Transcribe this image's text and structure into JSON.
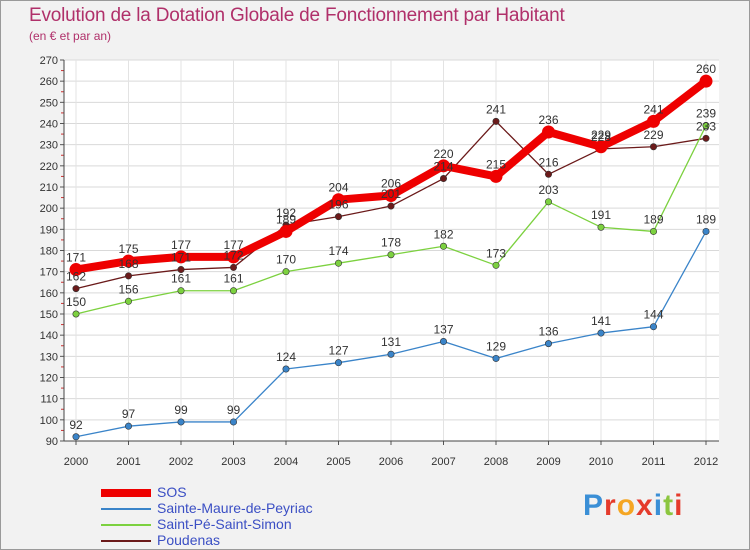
{
  "header": {
    "title": "Evolution de la Dotation Globale de Fonctionnement par Habitant",
    "subtitle": "(en € et par an)"
  },
  "logo": {
    "letters": [
      "P",
      "r",
      "o",
      "x",
      "i",
      "t",
      "i"
    ],
    "colors": [
      "#3b8fd6",
      "#e53b2c",
      "#f5a623",
      "#e53b2c",
      "#3b8fd6",
      "#8cc63f",
      "#e53b2c"
    ]
  },
  "chart_data": {
    "type": "line",
    "title": "Evolution de la Dotation Globale de Fonctionnement par Habitant",
    "subtitle": "(en € et par an)",
    "categories": [
      "2000",
      "2001",
      "2002",
      "2003",
      "2004",
      "2005",
      "2006",
      "2007",
      "2008",
      "2009",
      "2010",
      "2011",
      "2012"
    ],
    "ylim": [
      90,
      270
    ],
    "yticks": [
      90,
      100,
      110,
      120,
      130,
      140,
      150,
      160,
      170,
      180,
      190,
      200,
      210,
      220,
      230,
      240,
      250,
      260,
      270
    ],
    "grid": true,
    "legend_position": "bottom-left",
    "series": [
      {
        "name": "SOS",
        "color": "#ee0000",
        "values": [
          171,
          175,
          177,
          177,
          189,
          204,
          206,
          220,
          215,
          236,
          229,
          241,
          260
        ]
      },
      {
        "name": "Sainte-Maure-de-Peyriac",
        "color": "#3a84c9",
        "values": [
          92,
          97,
          99,
          99,
          124,
          127,
          131,
          137,
          129,
          136,
          141,
          144,
          189
        ]
      },
      {
        "name": "Saint-Pé-Saint-Simon",
        "color": "#7cd13f",
        "values": [
          150,
          156,
          161,
          161,
          170,
          174,
          178,
          182,
          173,
          203,
          191,
          189,
          239
        ]
      },
      {
        "name": "Poudenas",
        "color": "#6b1a1a",
        "values": [
          162,
          168,
          171,
          172,
          192,
          196,
          201,
          214,
          241,
          216,
          228,
          229,
          233
        ]
      }
    ]
  }
}
